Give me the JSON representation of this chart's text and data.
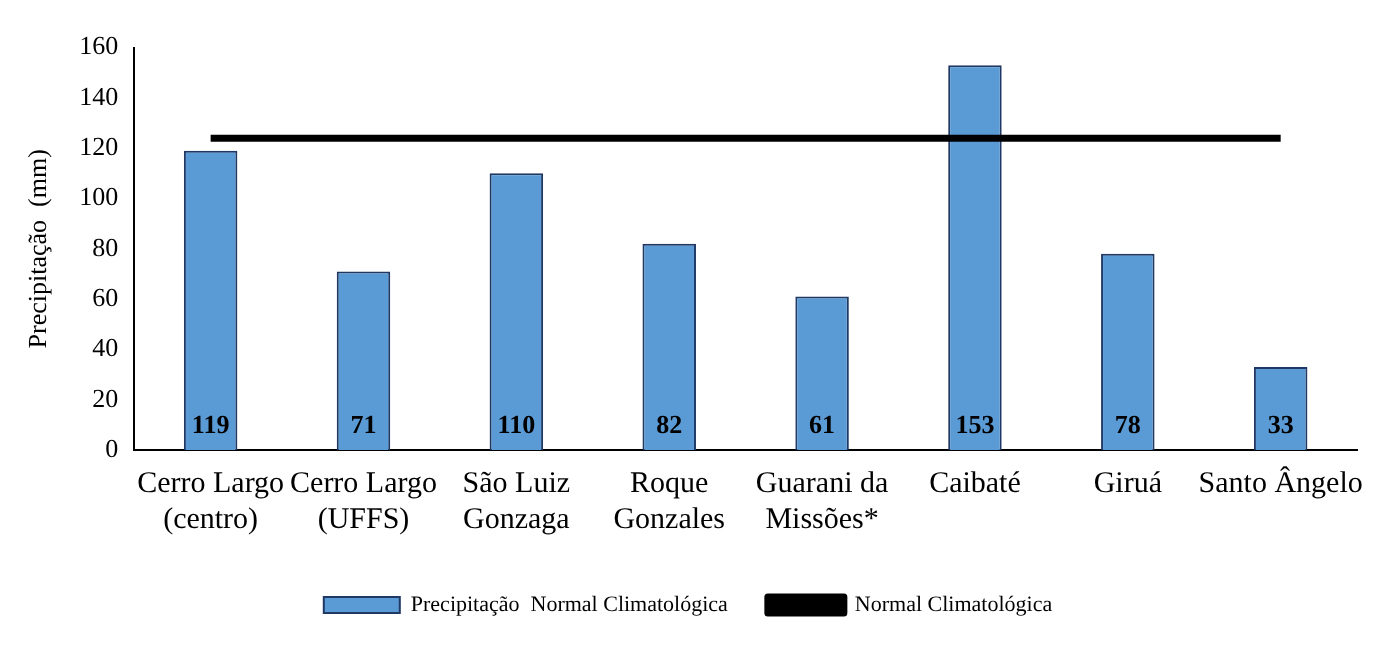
{
  "chart_data": {
    "type": "bar",
    "ylabel": "Precipitação  (mm)",
    "categories": [
      "Cerro Largo (centro)",
      "Cerro Largo (UFFS)",
      "São Luiz Gonzaga",
      "Roque Gonzales",
      "Guarani da Missões*",
      "Caibaté",
      "Giruá",
      "Santo Ângelo"
    ],
    "series": [
      {
        "name": "Precipitação  Normal Climatológica",
        "color": "#5b9bd5",
        "values": [
          119,
          71,
          110,
          82,
          61,
          153,
          78,
          33
        ],
        "value_labels": [
          "119",
          "71",
          "110",
          "82",
          "61",
          "153",
          "78",
          "33"
        ]
      },
      {
        "name": "Normal Climatológica",
        "type": "line",
        "color": "#000000",
        "values": [
          124,
          124,
          124,
          124,
          124,
          124,
          124,
          124
        ]
      }
    ],
    "ylim": [
      0,
      160
    ],
    "yticks": [
      0,
      20,
      40,
      60,
      80,
      100,
      120,
      140,
      160
    ],
    "grid": false,
    "legend": "bottom",
    "marker": "none",
    "line_style": "solid"
  }
}
